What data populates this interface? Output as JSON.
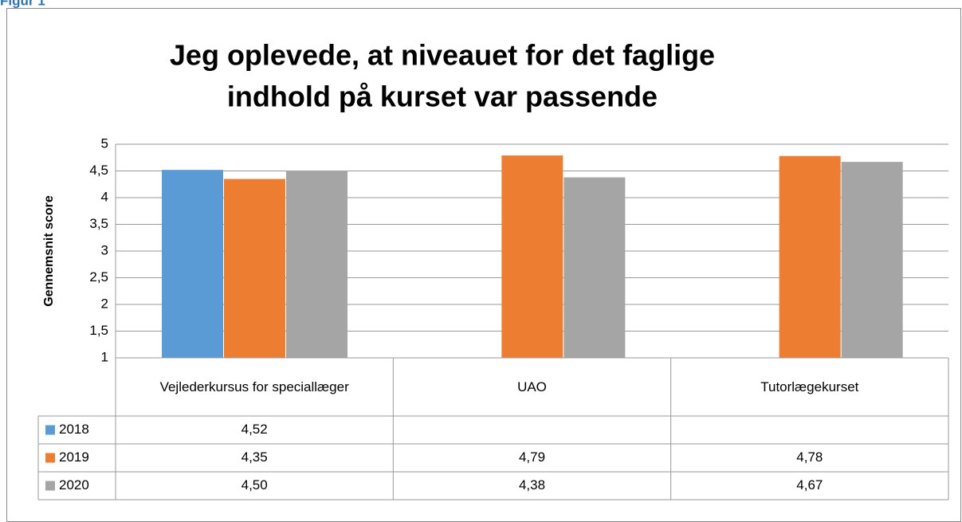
{
  "figure_label": "Figur 1",
  "chart_data": {
    "type": "bar",
    "title": [
      "Jeg oplevede, at niveauet for det faglige",
      "indhold på kurset var passende"
    ],
    "y_label": "Gennemsnit score",
    "categories": [
      "Vejlederkursus for speciallæger",
      "UAO",
      "Tutorlægekurset"
    ],
    "series": [
      {
        "name": "2018",
        "color": "#5b9bd5",
        "values": [
          4.52,
          null,
          null
        ],
        "value_labels": [
          "4,52",
          null,
          null
        ]
      },
      {
        "name": "2019",
        "color": "#ed7d31",
        "values": [
          4.35,
          4.79,
          4.78
        ],
        "value_labels": [
          "4,35",
          "4,79",
          "4,78"
        ]
      },
      {
        "name": "2020",
        "color": "#a5a5a5",
        "values": [
          4.5,
          4.38,
          4.67
        ],
        "value_labels": [
          "4,50",
          "4,38",
          "4,67"
        ]
      }
    ],
    "ylim": [
      1,
      5
    ],
    "yticks": [
      1,
      {
        "value": 1.5,
        "label": "1,5"
      },
      2,
      {
        "value": 2.5,
        "label": "2,5"
      },
      3,
      {
        "value": 3.5,
        "label": "3,5"
      },
      4,
      {
        "value": 4.5,
        "label": "4,5"
      },
      5
    ],
    "grid": true,
    "data_table": true
  }
}
